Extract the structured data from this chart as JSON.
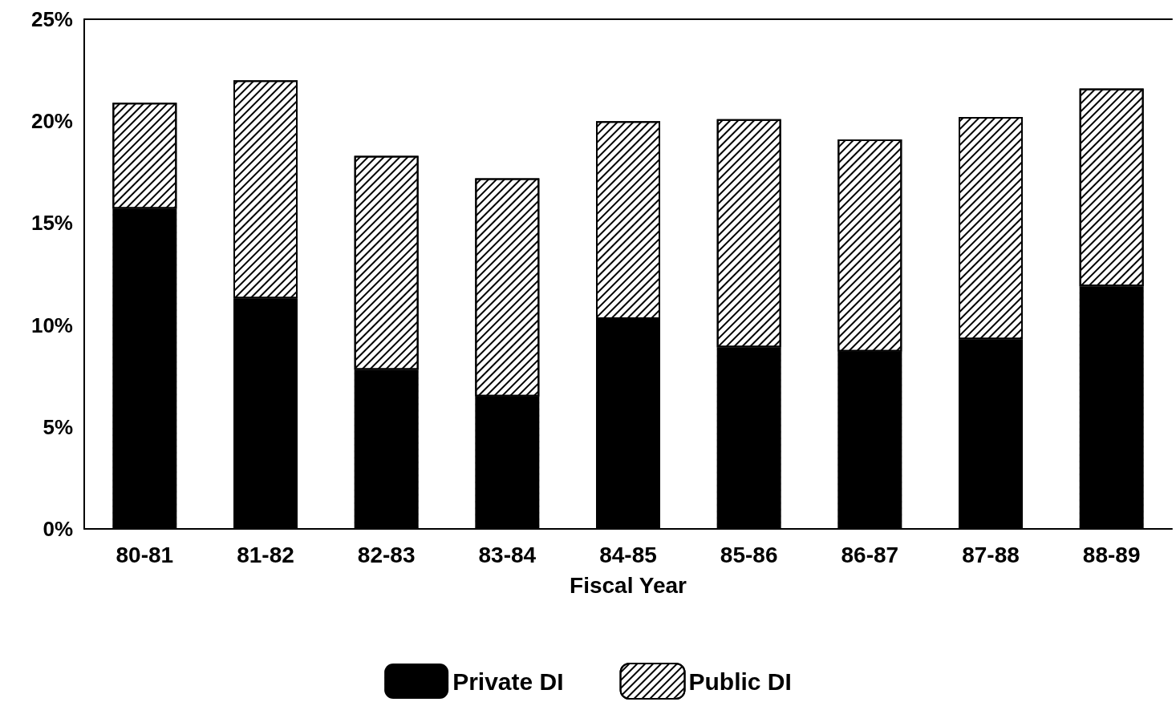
{
  "chart_data": {
    "type": "bar",
    "stacked": true,
    "xlabel": "Fiscal Year",
    "categories": [
      "80-81",
      "81-82",
      "82-83",
      "83-84",
      "84-85",
      "85-86",
      "86-87",
      "87-88",
      "88-89"
    ],
    "series": [
      {
        "name": "Private DI",
        "color": "#000000",
        "values": [
          15.7,
          11.3,
          7.8,
          6.5,
          10.3,
          8.9,
          8.7,
          9.3,
          11.9
        ]
      },
      {
        "name": "Public DI",
        "color": "#ffffff",
        "values": [
          5.2,
          10.7,
          10.5,
          10.7,
          9.7,
          11.2,
          10.4,
          10.9,
          9.7
        ]
      }
    ],
    "ylim": [
      0,
      25
    ],
    "yticks": [
      {
        "value": 0,
        "label": "0%"
      },
      {
        "value": 5,
        "label": "5%"
      },
      {
        "value": 10,
        "label": "10%"
      },
      {
        "value": 15,
        "label": "15%"
      },
      {
        "value": 20,
        "label": "20%"
      },
      {
        "value": 25,
        "label": "25%"
      }
    ],
    "grid": false,
    "legend": "bottom"
  }
}
